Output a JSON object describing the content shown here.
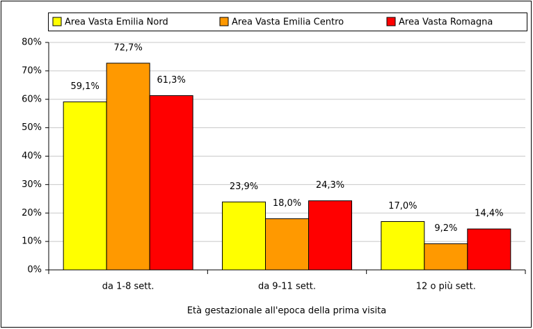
{
  "chart_data": {
    "type": "bar",
    "categories": [
      "da 1-8 sett.",
      "da 9-11 sett.",
      "12 o più sett."
    ],
    "series": [
      {
        "name": "Area Vasta Emilia Nord",
        "color": "#ffff00",
        "values": [
          59.1,
          23.9,
          17.0
        ],
        "value_labels": [
          "59,1%",
          "23,9%",
          "17,0%"
        ]
      },
      {
        "name": "Area Vasta Emilia Centro",
        "color": "#ff9900",
        "values": [
          72.7,
          18.0,
          9.2
        ],
        "value_labels": [
          "72,7%",
          "18,0%",
          "9,2%"
        ]
      },
      {
        "name": "Area Vasta Romagna",
        "color": "#ff0000",
        "values": [
          61.3,
          24.3,
          14.4
        ],
        "value_labels": [
          "61,3%",
          "24,3%",
          "14,4%"
        ]
      }
    ],
    "xlabel": "Età gestazionale all'epoca della prima visita",
    "ylim": [
      0,
      80
    ],
    "yticks": [
      {
        "value": 0,
        "label": "0%"
      },
      {
        "value": 10,
        "label": "10%"
      },
      {
        "value": 20,
        "label": "20%"
      },
      {
        "value": 30,
        "label": "30%"
      },
      {
        "value": 40,
        "label": "40%"
      },
      {
        "value": 50,
        "label": "50%"
      },
      {
        "value": 60,
        "label": "60%"
      },
      {
        "value": 70,
        "label": "70%"
      },
      {
        "value": 80,
        "label": "80%"
      }
    ],
    "grid": true,
    "legend": "top"
  }
}
